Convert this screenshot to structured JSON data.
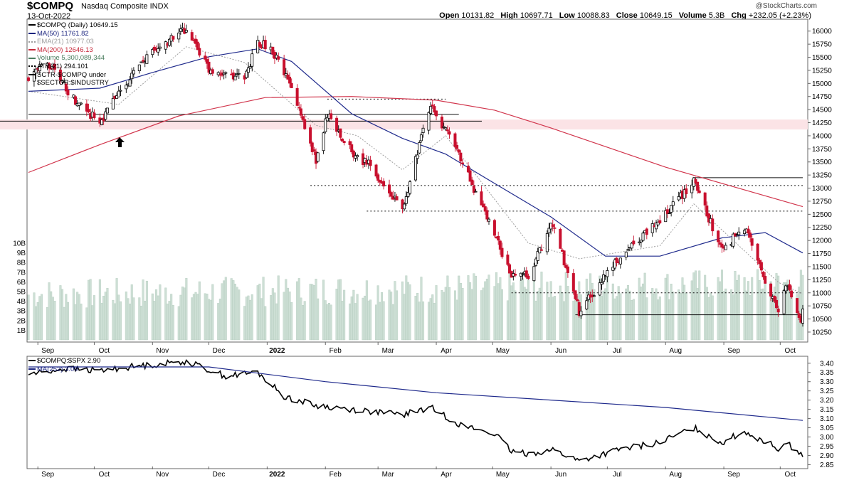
{
  "header": {
    "symbol": "$COMPQ",
    "name": "Nasdaq Composite INDX",
    "date": "13-Oct-2022",
    "brand": "@StockCharts.com",
    "quote": {
      "open_label": "Open",
      "open": "10131.82",
      "high_label": "High",
      "high": "10697.71",
      "low_label": "Low",
      "low": "10088.83",
      "close_label": "Close",
      "close": "10649.15",
      "volume_label": "Volume",
      "volume": "5.3B",
      "chg_label": "Chg",
      "chg": "+232.05 (+2.23%)"
    }
  },
  "legend_top": [
    {
      "text": "$COMPQ (Daily) 10649.15",
      "color": "#000000",
      "marker": "candle"
    },
    {
      "text": "MA(50) 11761.82",
      "color": "#1a237e",
      "marker": "line"
    },
    {
      "text": "EMA(21) 10977.03",
      "color": "#9e9e9e",
      "marker": "dash"
    },
    {
      "text": "MA(200) 12646.13",
      "color": "#c62839",
      "marker": "line"
    },
    {
      "text": "Volume 5,300,089,344",
      "color": "#4a7d5e",
      "marker": "bars"
    },
    {
      "text": "ATR(21) 294.101",
      "color": "#000000",
      "marker": "dash"
    },
    {
      "text": "SCTR-$COMPQ under",
      "color": "#000000",
      "marker": "line"
    },
    {
      "text": "$SECTOR:$INDUSTRY",
      "color": "#000000",
      "marker": "none"
    }
  ],
  "legend_bottom": [
    {
      "text": "$COMPQ:$SPX 2.90",
      "color": "#000000"
    },
    {
      "text": "MA(252) 3.09",
      "color": "#1a237e"
    }
  ],
  "chart_data": [
    {
      "type": "candlestick",
      "title": "$COMPQ Nasdaq Composite INDX",
      "x_labels": [
        "Sep",
        "Oct",
        "Nov",
        "Dec",
        "2022",
        "Feb",
        "Mar",
        "Apr",
        "May",
        "Jun",
        "Jul",
        "Aug",
        "Sep",
        "Oct"
      ],
      "y_ticks": [
        10250,
        10500,
        10750,
        11000,
        11250,
        11500,
        11750,
        12000,
        12250,
        12500,
        12750,
        13000,
        13250,
        13500,
        13750,
        14000,
        14250,
        14500,
        14750,
        15000,
        15250,
        15500,
        15750,
        16000
      ],
      "ylim": [
        10100,
        16200
      ],
      "volume_ticks": [
        "1B",
        "2B",
        "3B",
        "4B",
        "5B",
        "6B",
        "7B",
        "8B",
        "9B",
        "10B"
      ],
      "close_path": [
        [
          "2021-08-27",
          15130
        ],
        [
          "2021-09-07",
          15370
        ],
        [
          "2021-09-20",
          14710
        ],
        [
          "2021-10-04",
          14250
        ],
        [
          "2021-10-14",
          14820
        ],
        [
          "2021-10-29",
          15500
        ],
        [
          "2021-11-19",
          16050
        ],
        [
          "2021-12-01",
          15250
        ],
        [
          "2021-12-20",
          15100
        ],
        [
          "2021-12-27",
          15800
        ],
        [
          "2022-01-04",
          15620
        ],
        [
          "2022-01-14",
          14900
        ],
        [
          "2022-01-27",
          13550
        ],
        [
          "2022-02-02",
          14400
        ],
        [
          "2022-02-18",
          13550
        ],
        [
          "2022-02-24",
          13470
        ],
        [
          "2022-03-14",
          12580
        ],
        [
          "2022-03-29",
          14620
        ],
        [
          "2022-04-13",
          13650
        ],
        [
          "2022-04-29",
          12340
        ],
        [
          "2022-05-11",
          11360
        ],
        [
          "2022-05-20",
          11350
        ],
        [
          "2022-06-02",
          12320
        ],
        [
          "2022-06-16",
          10650
        ],
        [
          "2022-07-07",
          11640
        ],
        [
          "2022-07-29",
          12390
        ],
        [
          "2022-08-16",
          13130
        ],
        [
          "2022-08-31",
          11820
        ],
        [
          "2022-09-12",
          12270
        ],
        [
          "2022-09-30",
          10580
        ],
        [
          "2022-10-04",
          11170
        ],
        [
          "2022-10-12",
          10420
        ],
        [
          "2022-10-13",
          10649
        ]
      ],
      "ma50_path": [
        [
          "2021-08-27",
          14850
        ],
        [
          "2021-10-04",
          14910
        ],
        [
          "2021-11-01",
          15210
        ],
        [
          "2021-12-01",
          15510
        ],
        [
          "2021-12-27",
          15660
        ],
        [
          "2022-01-14",
          15420
        ],
        [
          "2022-02-15",
          14420
        ],
        [
          "2022-03-14",
          13950
        ],
        [
          "2022-04-06",
          13650
        ],
        [
          "2022-05-02",
          13090
        ],
        [
          "2022-06-01",
          12450
        ],
        [
          "2022-06-30",
          11700
        ],
        [
          "2022-07-29",
          11700
        ],
        [
          "2022-08-31",
          12050
        ],
        [
          "2022-09-23",
          12150
        ],
        [
          "2022-10-13",
          11762
        ]
      ],
      "ma200_path": [
        [
          "2021-08-27",
          13300
        ],
        [
          "2021-10-04",
          13830
        ],
        [
          "2021-11-15",
          14380
        ],
        [
          "2021-12-31",
          14730
        ],
        [
          "2022-02-15",
          14750
        ],
        [
          "2022-04-01",
          14680
        ],
        [
          "2022-05-02",
          14490
        ],
        [
          "2022-06-01",
          14150
        ],
        [
          "2022-07-01",
          13780
        ],
        [
          "2022-08-01",
          13400
        ],
        [
          "2022-09-01",
          13080
        ],
        [
          "2022-10-13",
          12646
        ]
      ],
      "ema21_path": [
        [
          "2021-08-27",
          14850
        ],
        [
          "2021-10-14",
          14600
        ],
        [
          "2021-11-19",
          15700
        ],
        [
          "2021-12-20",
          15400
        ],
        [
          "2022-01-27",
          14200
        ],
        [
          "2022-02-18",
          14000
        ],
        [
          "2022-03-14",
          13350
        ],
        [
          "2022-04-06",
          14000
        ],
        [
          "2022-05-20",
          11950
        ],
        [
          "2022-06-16",
          11650
        ],
        [
          "2022-07-29",
          11900
        ],
        [
          "2022-08-16",
          12700
        ],
        [
          "2022-09-30",
          11200
        ],
        [
          "2022-10-13",
          10977
        ]
      ],
      "levels": [
        10580,
        11000,
        12560,
        13050,
        13200,
        14410,
        14700
      ],
      "resistance_zone": [
        14120,
        14310
      ]
    },
    {
      "type": "line",
      "title": "$COMPQ:$SPX",
      "y_ticks": [
        2.85,
        2.9,
        2.95,
        3.0,
        3.05,
        3.1,
        3.15,
        3.2,
        3.25,
        3.3,
        3.35,
        3.4
      ],
      "ylim": [
        2.84,
        3.43
      ],
      "ratio_path": [
        [
          "2021-08-27",
          3.34
        ],
        [
          "2021-09-15",
          3.37
        ],
        [
          "2021-10-04",
          3.36
        ],
        [
          "2021-10-20",
          3.38
        ],
        [
          "2021-11-19",
          3.41
        ],
        [
          "2021-12-10",
          3.33
        ],
        [
          "2021-12-27",
          3.35
        ],
        [
          "2022-01-10",
          3.22
        ],
        [
          "2022-01-27",
          3.17
        ],
        [
          "2022-02-15",
          3.15
        ],
        [
          "2022-03-14",
          3.12
        ],
        [
          "2022-03-29",
          3.16
        ],
        [
          "2022-04-15",
          3.06
        ],
        [
          "2022-05-02",
          3.02
        ],
        [
          "2022-05-11",
          2.92
        ],
        [
          "2022-05-20",
          2.91
        ],
        [
          "2022-06-02",
          2.93
        ],
        [
          "2022-06-16",
          2.87
        ],
        [
          "2022-07-07",
          2.93
        ],
        [
          "2022-07-29",
          2.97
        ],
        [
          "2022-08-16",
          3.05
        ],
        [
          "2022-08-31",
          2.97
        ],
        [
          "2022-09-12",
          3.03
        ],
        [
          "2022-09-30",
          2.94
        ],
        [
          "2022-10-04",
          2.97
        ],
        [
          "2022-10-13",
          2.9
        ]
      ],
      "ma252_path": [
        [
          "2021-08-27",
          3.38
        ],
        [
          "2021-12-01",
          3.38
        ],
        [
          "2022-02-01",
          3.3
        ],
        [
          "2022-04-01",
          3.24
        ],
        [
          "2022-06-01",
          3.2
        ],
        [
          "2022-08-01",
          3.16
        ],
        [
          "2022-10-13",
          3.09
        ]
      ]
    }
  ]
}
